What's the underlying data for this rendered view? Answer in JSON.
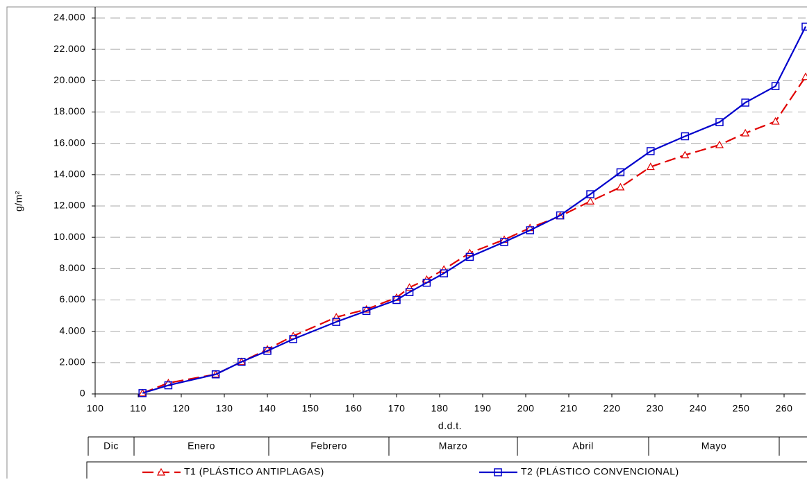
{
  "chart_data": {
    "type": "line",
    "y_label": "g/m²",
    "x_label": "d.d.t.",
    "x": [
      111,
      117,
      128,
      134,
      140,
      146,
      156,
      163,
      170,
      173,
      177,
      181,
      187,
      195,
      201,
      208,
      215,
      222,
      229,
      237,
      245,
      251,
      258,
      265
    ],
    "series": [
      {
        "name": "T1 (PLÁSTICO ANTIPLAGAS)",
        "color": "#e00000",
        "dashed": true,
        "marker": "triangle",
        "values": [
          50,
          700,
          1250,
          2050,
          2850,
          3700,
          4900,
          5400,
          6150,
          6800,
          7300,
          7950,
          9000,
          9850,
          10600,
          11350,
          12300,
          13200,
          14500,
          15250,
          15900,
          16650,
          17400,
          20250
        ]
      },
      {
        "name": "T2 (PLÁSTICO CONVENCIONAL)",
        "color": "#0000cc",
        "dashed": false,
        "marker": "square",
        "values": [
          50,
          550,
          1250,
          2050,
          2750,
          3500,
          4600,
          5300,
          6000,
          6500,
          7100,
          7700,
          8750,
          9700,
          10450,
          11400,
          12750,
          14150,
          15500,
          16450,
          17350,
          18600,
          19650,
          23450
        ]
      }
    ],
    "xlim": [
      100,
      265
    ],
    "xticks": [
      100,
      110,
      120,
      130,
      140,
      150,
      160,
      170,
      180,
      190,
      200,
      210,
      220,
      230,
      240,
      250,
      260
    ],
    "ylim": [
      0,
      24000
    ],
    "yticks": [
      0,
      {
        "value": 2000,
        "label": "2.000"
      },
      {
        "value": 4000,
        "label": "4.000"
      },
      {
        "value": 6000,
        "label": "6.000"
      },
      {
        "value": 8000,
        "label": "8.000"
      },
      {
        "value": 10000,
        "label": "10.000"
      },
      {
        "value": 12000,
        "label": "12.000"
      },
      {
        "value": 14000,
        "label": "14.000"
      },
      {
        "value": 16000,
        "label": "16.000"
      },
      {
        "value": 18000,
        "label": "18.000"
      },
      {
        "value": 20000,
        "label": "20.000"
      },
      {
        "value": 22000,
        "label": "22.000"
      },
      {
        "value": 24000,
        "label": "24.000"
      }
    ],
    "grid": true,
    "months": [
      "Dic",
      "Enero",
      "Febrero",
      "Marzo",
      "Abril",
      "Mayo"
    ]
  }
}
